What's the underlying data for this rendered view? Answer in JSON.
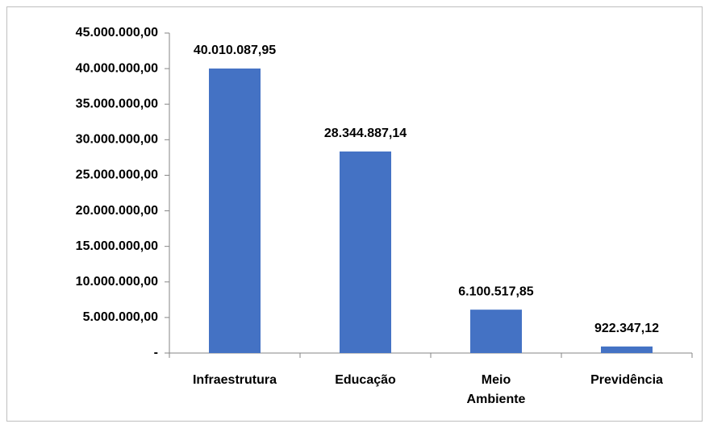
{
  "chart_data": {
    "type": "bar",
    "categories": [
      "Infraestrutura",
      "Educação",
      "Meio Ambiente",
      "Previdência"
    ],
    "values": [
      40010087.95,
      28344887.14,
      6100517.85,
      922347.12
    ],
    "value_labels": [
      "40.010.087,95",
      "28.344.887,14",
      "6.100.517,85",
      "922.347,12"
    ],
    "color": "#4472c4",
    "ylim": [
      0,
      45000000
    ],
    "yticks": [
      {
        "value": 0,
        "label": "-"
      },
      {
        "value": 5000000,
        "label": "5.000.000,00"
      },
      {
        "value": 10000000,
        "label": "10.000.000,00"
      },
      {
        "value": 15000000,
        "label": "15.000.000,00"
      },
      {
        "value": 20000000,
        "label": "20.000.000,00"
      },
      {
        "value": 25000000,
        "label": "25.000.000,00"
      },
      {
        "value": 30000000,
        "label": "30.000.000,00"
      },
      {
        "value": 35000000,
        "label": "35.000.000,00"
      },
      {
        "value": 40000000,
        "label": "40.000.000,00"
      },
      {
        "value": 45000000,
        "label": "45.000.000,00"
      }
    ],
    "grid": false
  }
}
